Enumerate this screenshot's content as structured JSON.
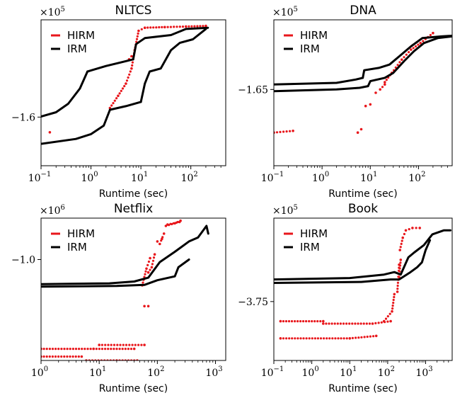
{
  "chart_data": [
    {
      "type": "scatter",
      "title": "NLTCS",
      "xlabel": "Runtime (sec)",
      "ylabel": "",
      "xscale": "log",
      "multiplier": "×10^5",
      "xlim": [
        0.1,
        500
      ],
      "ylim": [
        -1.68,
        -1.44
      ],
      "xticks": [
        {
          "value": 0.1,
          "base": "10",
          "exp": "−1"
        },
        {
          "value": 1,
          "base": "10",
          "exp": "0"
        },
        {
          "value": 10,
          "base": "10",
          "exp": "1"
        },
        {
          "value": 100,
          "base": "10",
          "exp": "2"
        }
      ],
      "yticks": [
        {
          "value": -1.6,
          "label": "−1.6"
        }
      ],
      "legend": "top-left",
      "series": [
        {
          "name": "HIRM",
          "color": "#e8161b",
          "style": "dots",
          "segments": [
            [
              [
                0.15,
                -1.625
              ]
            ],
            [
              [
                2.4,
                -1.585
              ],
              [
                3.5,
                -1.565
              ],
              [
                5,
                -1.545
              ],
              [
                6.5,
                -1.52
              ],
              [
                7.5,
                -1.49
              ],
              [
                9,
                -1.458
              ],
              [
                12,
                -1.453
              ],
              [
                30,
                -1.452
              ],
              [
                80,
                -1.451
              ],
              [
                200,
                -1.45
              ]
            ],
            [
              [
                5.8,
                -1.505
              ],
              [
                6.5,
                -1.5
              ]
            ]
          ]
        },
        {
          "name": "IRM",
          "color": "#000000",
          "style": "line",
          "segments": [
            [
              [
                0.1,
                -1.599
              ],
              [
                0.2,
                -1.592
              ],
              [
                0.35,
                -1.578
              ],
              [
                0.6,
                -1.553
              ],
              [
                0.85,
                -1.525
              ]
            ],
            [
              [
                0.85,
                -1.525
              ],
              [
                2,
                -1.516
              ],
              [
                4,
                -1.51
              ],
              [
                7,
                -1.505
              ]
            ],
            [
              [
                7,
                -1.505
              ],
              [
                8,
                -1.48
              ],
              [
                12,
                -1.47
              ],
              [
                40,
                -1.465
              ],
              [
                80,
                -1.455
              ],
              [
                220,
                -1.453
              ]
            ],
            [
              [
                0.1,
                -1.644
              ],
              [
                0.5,
                -1.636
              ],
              [
                1,
                -1.628
              ],
              [
                1.8,
                -1.614
              ],
              [
                2.4,
                -1.588
              ]
            ],
            [
              [
                2.4,
                -1.588
              ],
              [
                5,
                -1.582
              ],
              [
                10,
                -1.575
              ]
            ],
            [
              [
                10,
                -1.575
              ],
              [
                12,
                -1.545
              ],
              [
                15,
                -1.525
              ],
              [
                25,
                -1.52
              ],
              [
                40,
                -1.49
              ],
              [
                60,
                -1.478
              ],
              [
                110,
                -1.472
              ],
              [
                200,
                -1.455
              ]
            ]
          ]
        }
      ]
    },
    {
      "type": "scatter",
      "title": "DNA",
      "xlabel": "Runtime (sec)",
      "ylabel": "",
      "xscale": "log",
      "multiplier": "×10^5",
      "xlim": [
        0.1,
        500
      ],
      "ylim": [
        -1.673,
        -1.629
      ],
      "xticks": [
        {
          "value": 0.1,
          "base": "10",
          "exp": "−1"
        },
        {
          "value": 1,
          "base": "10",
          "exp": "0"
        },
        {
          "value": 10,
          "base": "10",
          "exp": "1"
        },
        {
          "value": 100,
          "base": "10",
          "exp": "2"
        }
      ],
      "yticks": [
        {
          "value": -1.65,
          "label": "−1.65"
        }
      ],
      "legend": "top-left",
      "series": [
        {
          "name": "HIRM",
          "color": "#e8161b",
          "style": "dots",
          "segments": [
            [
              [
                0.1,
                -1.663
              ],
              [
                0.25,
                -1.6625
              ]
            ],
            [
              [
                5.5,
                -1.663
              ]
            ],
            [
              [
                6.5,
                -1.662
              ]
            ],
            [
              [
                8,
                -1.655
              ],
              [
                10,
                -1.6545
              ]
            ],
            [
              [
                13,
                -1.651
              ],
              [
                16,
                -1.65
              ],
              [
                20,
                -1.6485
              ]
            ],
            [
              [
                20,
                -1.6478
              ],
              [
                28,
                -1.645
              ],
              [
                45,
                -1.641
              ],
              [
                70,
                -1.638
              ],
              [
                110,
                -1.636
              ],
              [
                200,
                -1.633
              ]
            ]
          ]
        },
        {
          "name": "IRM",
          "color": "#000000",
          "style": "line",
          "segments": [
            [
              [
                0.1,
                -1.6485
              ],
              [
                2,
                -1.648
              ],
              [
                5,
                -1.647
              ],
              [
                7,
                -1.6465
              ]
            ],
            [
              [
                7,
                -1.6465
              ],
              [
                7.5,
                -1.6442
              ],
              [
                15,
                -1.6435
              ],
              [
                25,
                -1.6425
              ],
              [
                40,
                -1.64
              ],
              [
                70,
                -1.637
              ],
              [
                120,
                -1.6345
              ],
              [
                300,
                -1.634
              ],
              [
                500,
                -1.6338
              ]
            ],
            [
              [
                0.1,
                -1.6505
              ],
              [
                2,
                -1.65
              ],
              [
                6,
                -1.6495
              ],
              [
                9,
                -1.649
              ]
            ],
            [
              [
                9,
                -1.649
              ],
              [
                10,
                -1.6475
              ],
              [
                20,
                -1.6465
              ],
              [
                30,
                -1.645
              ],
              [
                50,
                -1.6415
              ],
              [
                80,
                -1.6385
              ],
              [
                130,
                -1.636
              ],
              [
                250,
                -1.6345
              ],
              [
                500,
                -1.634
              ]
            ]
          ]
        }
      ]
    },
    {
      "type": "scatter",
      "title": "Netflix",
      "xlabel": "Runtime (sec)",
      "ylabel": "",
      "xscale": "log",
      "multiplier": "×10^6",
      "xlim": [
        1,
        1500
      ],
      "ylim": [
        -1.039,
        -0.984
      ],
      "xticks": [
        {
          "value": 1,
          "base": "10",
          "exp": "0"
        },
        {
          "value": 10,
          "base": "10",
          "exp": "1"
        },
        {
          "value": 100,
          "base": "10",
          "exp": "2"
        },
        {
          "value": 1000,
          "base": "10",
          "exp": "3"
        }
      ],
      "yticks": [
        {
          "value": -1.0,
          "label": "−1.0"
        }
      ],
      "legend": "top-left",
      "series": [
        {
          "name": "HIRM",
          "color": "#e8161b",
          "style": "dots",
          "segments": [
            [
              [
                1,
                -1.0345
              ],
              [
                8,
                -1.0345
              ],
              [
                40,
                -1.0345
              ]
            ],
            [
              [
                1,
                -1.0375
              ],
              [
                5,
                -1.0375
              ]
            ],
            [
              [
                6,
                -1.039
              ],
              [
                20,
                -1.039
              ],
              [
                45,
                -1.039
              ]
            ],
            [
              [
                10,
                -1.033
              ],
              [
                60,
                -1.033
              ]
            ],
            [
              [
                60,
                -1.018
              ],
              [
                70,
                -1.018
              ]
            ],
            [
              [
                70,
                -1.005
              ],
              [
                80,
                -1.003
              ],
              [
                90,
                -0.998
              ]
            ],
            [
              [
                110,
                -0.994
              ],
              [
                130,
                -0.99
              ]
            ],
            [
              [
                140,
                -0.987
              ],
              [
                200,
                -0.986
              ],
              [
                250,
                -0.985
              ]
            ],
            [
              [
                55,
                -1.01
              ],
              [
                65,
                -1.0035
              ],
              [
                75,
                -0.9995
              ]
            ],
            [
              [
                100,
                -0.993
              ],
              [
                120,
                -0.992
              ]
            ],
            [
              [
                150,
                -0.9865
              ],
              [
                240,
                -0.9855
              ]
            ]
          ]
        },
        {
          "name": "IRM",
          "color": "#000000",
          "style": "line",
          "segments": [
            [
              [
                1,
                -1.0095
              ],
              [
                15,
                -1.0092
              ],
              [
                40,
                -1.0085
              ],
              [
                70,
                -1.007
              ],
              [
                110,
                -1.001
              ],
              [
                200,
                -0.997
              ],
              [
                350,
                -0.993
              ],
              [
                500,
                -0.9915
              ],
              [
                700,
                -0.987
              ],
              [
                750,
                -0.99
              ]
            ],
            [
              [
                1,
                -1.0105
              ],
              [
                20,
                -1.0102
              ],
              [
                60,
                -1.0098
              ],
              [
                100,
                -1.008
              ],
              [
                200,
                -1.0065
              ],
              [
                230,
                -1.003
              ],
              [
                350,
                -1.0
              ]
            ]
          ]
        }
      ]
    },
    {
      "type": "scatter",
      "title": "Book",
      "xlabel": "Runtime (sec)",
      "ylabel": "",
      "xscale": "log",
      "multiplier": "×10^5",
      "xlim": [
        0.1,
        5000
      ],
      "ylim": [
        -3.762,
        -3.733
      ],
      "xticks": [
        {
          "value": 0.1,
          "base": "10",
          "exp": "−1"
        },
        {
          "value": 1,
          "base": "10",
          "exp": "0"
        },
        {
          "value": 10,
          "base": "10",
          "exp": "1"
        },
        {
          "value": 100,
          "base": "10",
          "exp": "2"
        },
        {
          "value": 1000,
          "base": "10",
          "exp": "3"
        }
      ],
      "yticks": [
        {
          "value": -3.75,
          "label": "−3.75"
        }
      ],
      "legend": "top-left",
      "series": [
        {
          "name": "HIRM",
          "color": "#e8161b",
          "style": "dots",
          "segments": [
            [
              [
                0.15,
                -3.754
              ],
              [
                2,
                -3.754
              ]
            ],
            [
              [
                0.15,
                -3.7575
              ],
              [
                10,
                -3.7575
              ],
              [
                50,
                -3.757
              ]
            ],
            [
              [
                2,
                -3.7545
              ],
              [
                40,
                -3.7545
              ],
              [
                120,
                -3.754
              ]
            ],
            [
              [
                80,
                -3.754
              ],
              [
                130,
                -3.752
              ],
              [
                150,
                -3.7485
              ]
            ],
            [
              [
                180,
                -3.748
              ],
              [
                200,
                -3.7425
              ]
            ],
            [
              [
                210,
                -3.7395
              ],
              [
                250,
                -3.737
              ],
              [
                300,
                -3.7355
              ],
              [
                450,
                -3.735
              ],
              [
                700,
                -3.735
              ]
            ],
            [
              [
                200,
                -3.745
              ],
              [
                220,
                -3.7415
              ]
            ]
          ]
        },
        {
          "name": "IRM",
          "color": "#000000",
          "style": "line",
          "segments": [
            [
              [
                0.1,
                -3.7455
              ],
              [
                10,
                -3.7452
              ],
              [
                80,
                -3.7445
              ],
              [
                150,
                -3.744
              ],
              [
                220,
                -3.7445
              ],
              [
                350,
                -3.741
              ],
              [
                500,
                -3.74
              ],
              [
                900,
                -3.7385
              ],
              [
                1500,
                -3.7363
              ],
              [
                3000,
                -3.7355
              ],
              [
                4500,
                -3.7355
              ]
            ],
            [
              [
                0.1,
                -3.7462
              ],
              [
                20,
                -3.746
              ],
              [
                120,
                -3.7455
              ],
              [
                200,
                -3.7455
              ],
              [
                400,
                -3.744
              ],
              [
                600,
                -3.743
              ],
              [
                800,
                -3.742
              ],
              [
                1000,
                -3.7395
              ],
              [
                1300,
                -3.7375
              ]
            ]
          ]
        }
      ]
    }
  ]
}
